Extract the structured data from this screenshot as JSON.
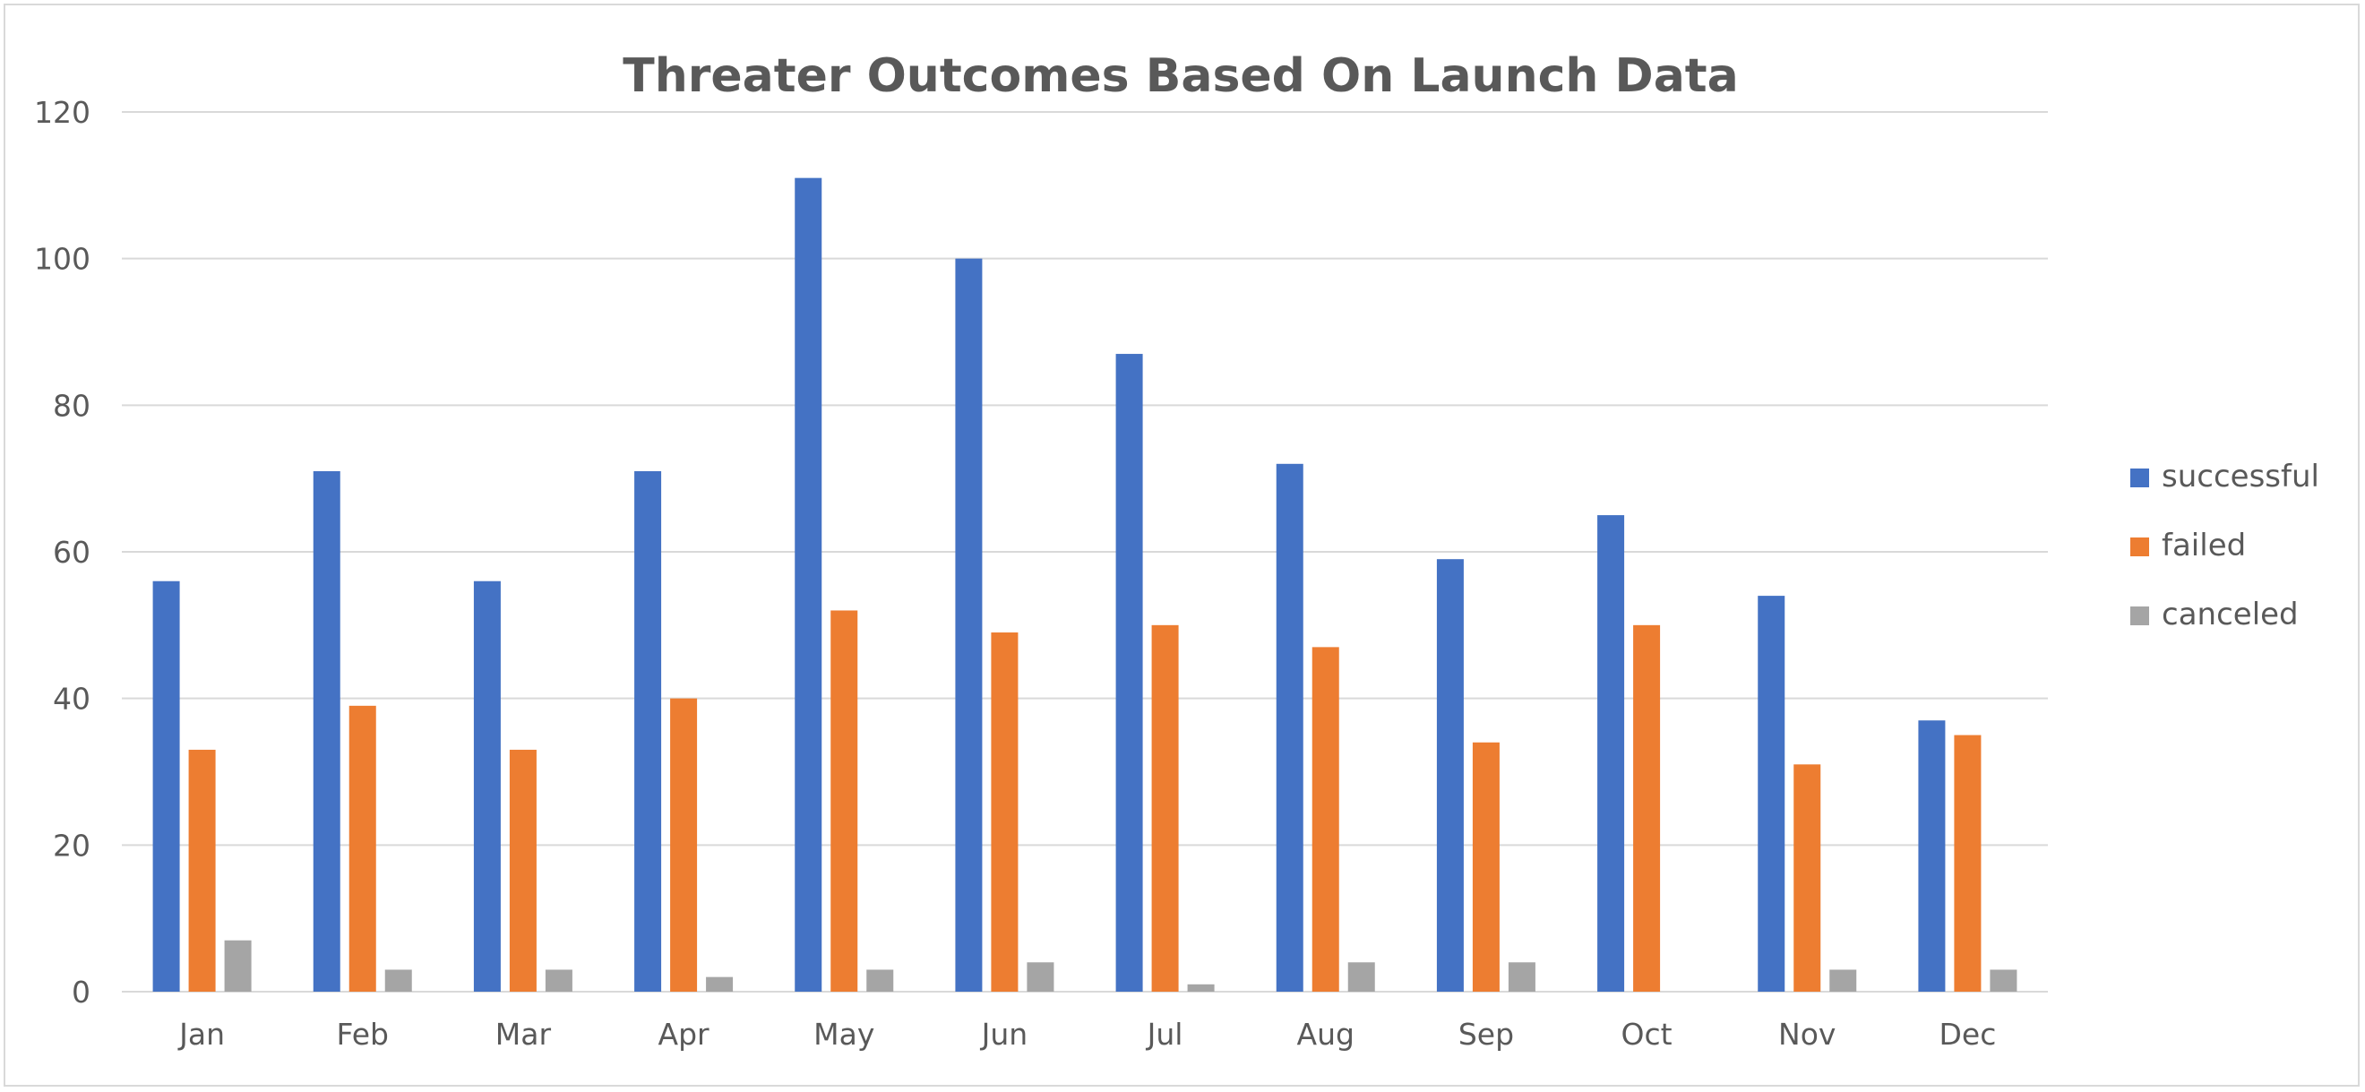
{
  "chart_data": {
    "type": "bar",
    "title": "Threater Outcomes Based On Launch Data",
    "xlabel": "",
    "ylabel": "",
    "categories": [
      "Jan",
      "Feb",
      "Mar",
      "Apr",
      "May",
      "Jun",
      "Jul",
      "Aug",
      "Sep",
      "Oct",
      "Nov",
      "Dec"
    ],
    "series": [
      {
        "name": "successful",
        "color": "#4472C4",
        "values": [
          56,
          71,
          56,
          71,
          111,
          100,
          87,
          72,
          59,
          65,
          54,
          37
        ]
      },
      {
        "name": "failed",
        "color": "#ED7D31",
        "values": [
          33,
          39,
          33,
          40,
          52,
          49,
          50,
          47,
          34,
          50,
          31,
          35
        ]
      },
      {
        "name": "canceled",
        "color": "#A5A5A5",
        "values": [
          7,
          3,
          3,
          2,
          3,
          4,
          1,
          4,
          4,
          0,
          3,
          3
        ]
      }
    ],
    "ylim": [
      0,
      120
    ],
    "yticks": [
      0,
      20,
      40,
      60,
      80,
      100,
      120
    ],
    "grid": true,
    "legend_position": "right"
  }
}
